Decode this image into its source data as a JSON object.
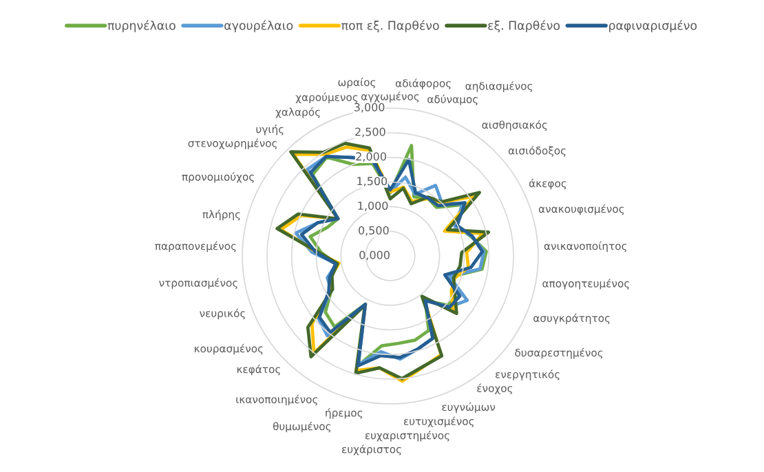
{
  "chart_data": {
    "type": "radar",
    "categories": [
      "αγχωμένος",
      "αδιάφορος",
      "αδύναμος",
      "αηδιασμένος",
      "αισθησιακός",
      "αισιόδοξος",
      "άκεφος",
      "ανακουφισμένος",
      "ανικανοποίητος",
      "απογοητευμένος",
      "ασυγκράτητος",
      "δυσαρεστημένος",
      "ενεργητικός",
      "ένοχος",
      "ευγνώμων",
      "ευτυχισμένος",
      "ευχαριστημένος",
      "ευχάριστος",
      "ήρεμος",
      "θυμωμένος",
      "ικανοποιημένος",
      "κεφάτος",
      "κουρασμένος",
      "νευρικός",
      "ντροπιασμένος",
      "παραπονεμένος",
      "πλήρης",
      "προνομιούχος",
      "στενοχωρημένος",
      "υγιής",
      "χαλαρός",
      "χαρούμενος",
      "ωραίος"
    ],
    "series": [
      {
        "name": "πυρηνέλαιο",
        "color": "#70ad47",
        "values": [
          1.28,
          2.28,
          1.29,
          1.4,
          1.36,
          1.79,
          1.47,
          1.68,
          1.95,
          1.88,
          1.3,
          1.62,
          1.52,
          1.15,
          1.7,
          1.78,
          1.78,
          1.83,
          2.32,
          1.1,
          1.83,
          1.74,
          1.38,
          1.3,
          1.1,
          1.4,
          1.67,
          1.4,
          1.3,
          2.28,
          2.38,
          2.0,
          1.91
        ]
      },
      {
        "name": "αγουρέλαιο",
        "color": "#5b9bd5",
        "values": [
          1.3,
          1.63,
          1.35,
          1.7,
          1.51,
          1.8,
          1.44,
          1.7,
          1.9,
          1.84,
          1.27,
          1.8,
          1.58,
          1.15,
          1.88,
          1.97,
          2.1,
          1.95,
          2.3,
          1.1,
          2.06,
          1.93,
          1.38,
          1.35,
          1.1,
          1.59,
          1.97,
          1.62,
          1.32,
          2.43,
          2.4,
          2.15,
          2.0
        ]
      },
      {
        "name": "ποπ εξ. Παρθένο",
        "color": "#ffc000",
        "values": [
          1.3,
          1.42,
          1.19,
          1.38,
          1.5,
          2.09,
          1.21,
          1.93,
          1.55,
          1.6,
          1.38,
          1.43,
          1.69,
          1.1,
          2.25,
          2.35,
          2.55,
          2.28,
          2.42,
          1.1,
          2.5,
          2.1,
          1.38,
          1.28,
          1.05,
          1.48,
          2.28,
          1.98,
          1.3,
          2.85,
          2.45,
          2.38,
          2.18
        ]
      },
      {
        "name": "εξ. Παρθένο",
        "color": "#43682b",
        "values": [
          1.16,
          1.4,
          1.14,
          1.42,
          1.52,
          2.22,
          1.28,
          2.05,
          1.45,
          1.43,
          1.36,
          1.51,
          1.78,
          1.04,
          2.28,
          2.34,
          2.5,
          2.28,
          2.48,
          1.12,
          2.6,
          2.21,
          1.35,
          1.25,
          1.08,
          1.45,
          2.36,
          2.05,
          1.3,
          2.92,
          2.5,
          2.46,
          2.23
        ]
      },
      {
        "name": "ραφιναρισμένο",
        "color": "#255e91",
        "values": [
          1.34,
          1.99,
          1.38,
          1.4,
          1.41,
          1.86,
          1.49,
          1.71,
          1.87,
          1.65,
          1.17,
          1.63,
          1.59,
          1.15,
          1.88,
          1.97,
          2.07,
          2.03,
          2.32,
          1.1,
          1.97,
          1.9,
          1.44,
          1.3,
          1.12,
          1.51,
          1.85,
          1.62,
          1.3,
          2.34,
          2.4,
          2.15,
          2.01
        ]
      }
    ],
    "ylim": [
      0,
      3
    ],
    "yticks": [
      {
        "value": 0,
        "label": "0,000"
      },
      {
        "value": 0.5,
        "label": "0,500"
      },
      {
        "value": 1,
        "label": "1,000"
      },
      {
        "value": 1.5,
        "label": "1,500"
      },
      {
        "value": 2,
        "label": "2,000"
      },
      {
        "value": 2.5,
        "label": "2,500"
      },
      {
        "value": 3,
        "label": "3,000"
      }
    ],
    "grid": "y",
    "legend": "top"
  }
}
